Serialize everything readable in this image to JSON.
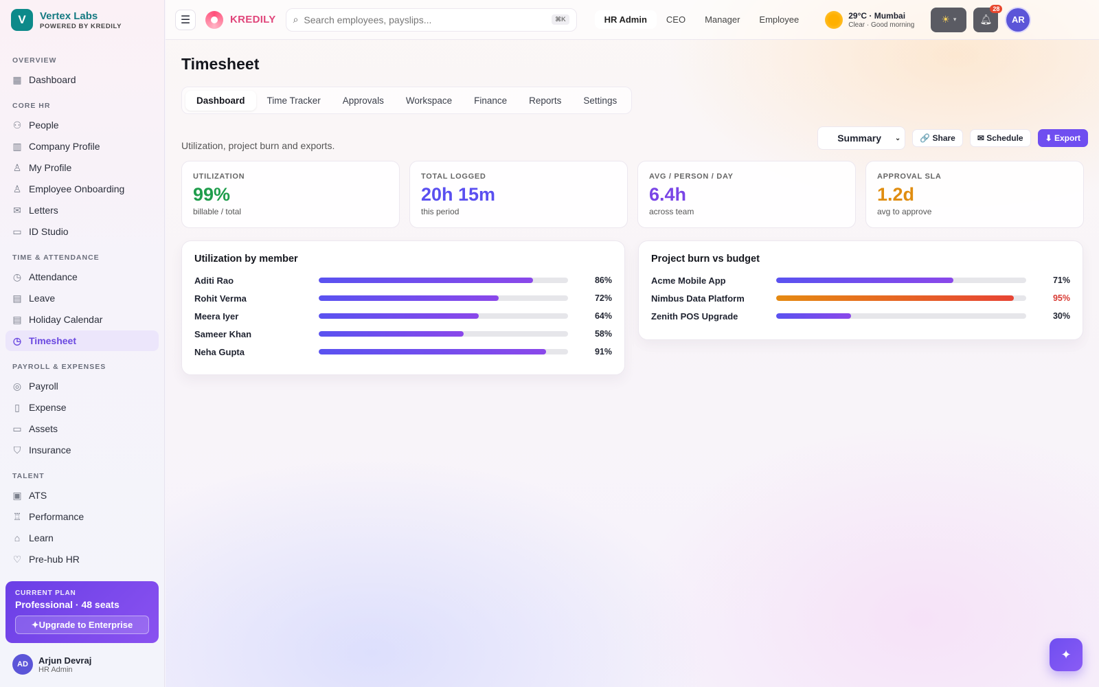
{
  "brand": {
    "initial": "V",
    "name": "Vertex Labs",
    "sub": "POWERED BY KREDILY"
  },
  "sidebar": {
    "sections": [
      {
        "title": "OVERVIEW",
        "items": [
          {
            "label": "Dashboard",
            "icon": "grid-icon"
          }
        ]
      },
      {
        "title": "CORE HR",
        "items": [
          {
            "label": "People",
            "icon": "users-icon"
          },
          {
            "label": "Company Profile",
            "icon": "building-icon"
          },
          {
            "label": "My Profile",
            "icon": "user-icon"
          },
          {
            "label": "Employee Onboarding",
            "icon": "user-plus-icon"
          },
          {
            "label": "Letters",
            "icon": "mail-icon"
          },
          {
            "label": "ID Studio",
            "icon": "id-card-icon"
          }
        ]
      },
      {
        "title": "TIME & ATTENDANCE",
        "items": [
          {
            "label": "Attendance",
            "icon": "clock-icon"
          },
          {
            "label": "Leave",
            "icon": "calendar-check-icon"
          },
          {
            "label": "Holiday Calendar",
            "icon": "calendar-icon"
          },
          {
            "label": "Timesheet",
            "icon": "timer-icon",
            "active": true
          }
        ]
      },
      {
        "title": "PAYROLL & EXPENSES",
        "items": [
          {
            "label": "Payroll",
            "icon": "coin-icon"
          },
          {
            "label": "Expense",
            "icon": "receipt-icon"
          },
          {
            "label": "Assets",
            "icon": "monitor-icon"
          },
          {
            "label": "Insurance",
            "icon": "shield-icon"
          }
        ]
      },
      {
        "title": "TALENT",
        "items": [
          {
            "label": "ATS",
            "icon": "briefcase-icon"
          },
          {
            "label": "Performance",
            "icon": "trophy-icon"
          },
          {
            "label": "Learn",
            "icon": "graduation-cap-icon"
          },
          {
            "label": "Pre-hub HR",
            "icon": "heart-icon"
          }
        ]
      }
    ],
    "plan": {
      "label": "CURRENT PLAN",
      "name": "Professional · 48 seats",
      "cta": "✦Upgrade to Enterprise"
    },
    "user": {
      "initials": "AD",
      "name": "Arjun Devraj",
      "role": "HR Admin"
    }
  },
  "topbar": {
    "product": "KREDILY",
    "search_placeholder": "Search employees, payslips...",
    "shortcut": "⌘K",
    "roles": [
      "HR Admin",
      "CEO",
      "Manager",
      "Employee"
    ],
    "active_role": "HR Admin",
    "weather": {
      "line1": "29°C · Mumbai",
      "line2": "Clear · Good morning"
    },
    "notifications": "28",
    "avatar": "AR"
  },
  "page": {
    "title": "Timesheet",
    "tabs": [
      "Dashboard",
      "Time Tracker",
      "Approvals",
      "Workspace",
      "Finance",
      "Reports",
      "Settings"
    ],
    "active_tab": "Dashboard",
    "subtitle": "Utilization, project burn and exports.",
    "view_select": "Summary",
    "actions": {
      "share": "🔗 Share",
      "schedule": "✉ Schedule",
      "export": "⬇ Export"
    }
  },
  "kpis": [
    {
      "label": "UTILIZATION",
      "value": "99%",
      "sub": "billable / total",
      "color": "#1f9d4c"
    },
    {
      "label": "TOTAL LOGGED",
      "value": "20h 15m",
      "sub": "this period",
      "color": "#5a4ff0"
    },
    {
      "label": "AVG / PERSON / DAY",
      "value": "6.4h",
      "sub": "across team",
      "color": "#7a45e6"
    },
    {
      "label": "APPROVAL SLA",
      "value": "1.2d",
      "sub": "avg to approve",
      "color": "#e08d10"
    }
  ],
  "utilization": {
    "title": "Utilization by member",
    "rows": [
      {
        "name": "Aditi Rao",
        "pct": 86,
        "label": "86%"
      },
      {
        "name": "Rohit Verma",
        "pct": 72,
        "label": "72%"
      },
      {
        "name": "Meera Iyer",
        "pct": 64,
        "label": "64%"
      },
      {
        "name": "Sameer Khan",
        "pct": 58,
        "label": "58%"
      },
      {
        "name": "Neha Gupta",
        "pct": 91,
        "label": "91%"
      }
    ]
  },
  "burn": {
    "title": "Project burn vs budget",
    "rows": [
      {
        "name": "Acme Mobile App",
        "pct": 71,
        "label": "71%",
        "hot": false
      },
      {
        "name": "Nimbus Data Platform",
        "pct": 95,
        "label": "95%",
        "hot": true,
        "color": "#d83a33"
      },
      {
        "name": "Zenith POS Upgrade",
        "pct": 30,
        "label": "30%",
        "hot": false
      }
    ]
  },
  "fab_icon": "sparkle-icon"
}
